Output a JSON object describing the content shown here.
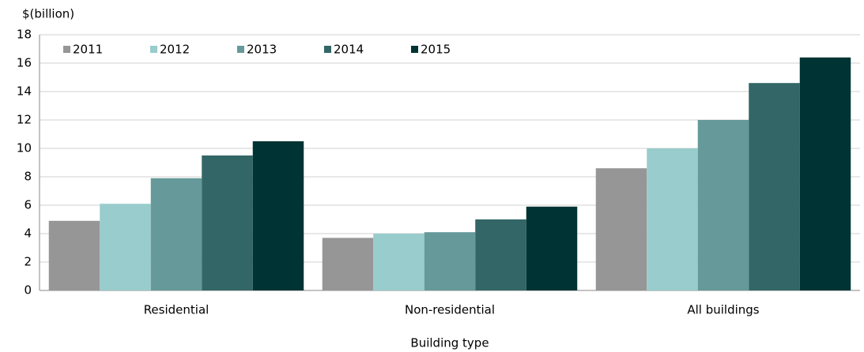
{
  "chart_data": {
    "type": "bar",
    "y_axis_label": "$(billion)",
    "x_axis_label": "Building type",
    "categories": [
      "Residential",
      "Non-residential",
      "All buildings"
    ],
    "series": [
      {
        "name": "2011",
        "color": "#969696",
        "values": [
          4.9,
          3.7,
          8.6
        ]
      },
      {
        "name": "2012",
        "color": "#99cccc",
        "values": [
          6.1,
          4.0,
          10.0
        ]
      },
      {
        "name": "2013",
        "color": "#669999",
        "values": [
          7.9,
          4.1,
          12.0
        ]
      },
      {
        "name": "2014",
        "color": "#336666",
        "values": [
          9.5,
          5.0,
          14.6
        ]
      },
      {
        "name": "2015",
        "color": "#003333",
        "values": [
          10.5,
          5.9,
          16.4
        ]
      }
    ],
    "ylim": [
      0,
      18
    ],
    "yticks": [
      0,
      2,
      4,
      6,
      8,
      10,
      12,
      14,
      16,
      18
    ],
    "grid": true,
    "legend": "top-left"
  }
}
